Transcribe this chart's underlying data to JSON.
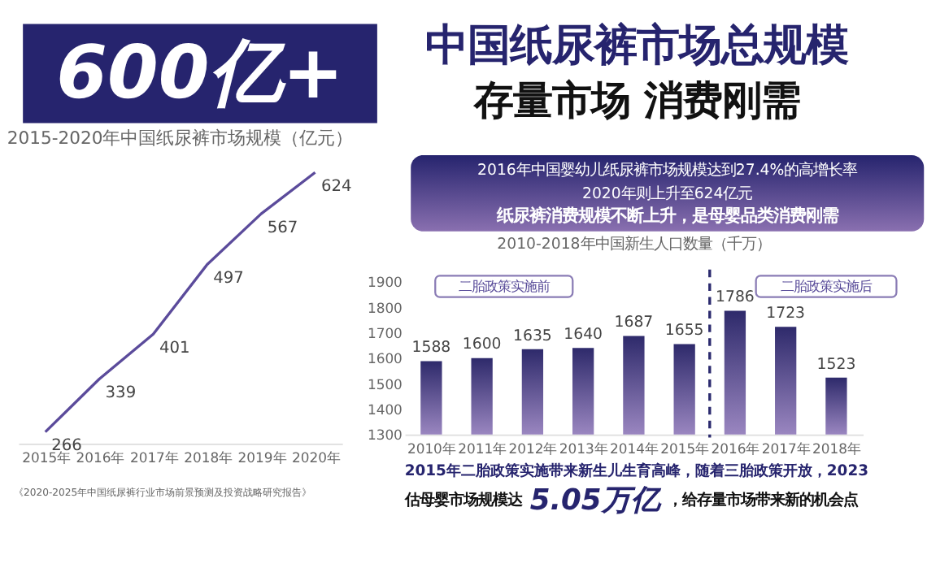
{
  "chart_data": [
    {
      "type": "other",
      "title": "中国纸尿裤市场总规模",
      "subtitle": "存量市场 消费刚需",
      "color": "#26246e",
      "annotations": [
        "600亿+",
        "2016年中国婴幼儿纸尿裤市场规模达到27.4%的高增长率",
        "2020年则上升至624亿元",
        "纸尿裤消费规模不断上升，是母婴品类消费刚需",
        "2015年二胎政策实施带来新生儿生育高峰，随着三胎政策开放，2023",
        "估母婴市场规模达",
        "5.05万亿",
        "，给存量市场带来新的机会点"
      ]
    },
    {
      "type": "line",
      "title": "2015-2020年中国纸尿裤市场规模（亿元）",
      "categories": [
        "2015年",
        "2016年",
        "2017年",
        "2018年",
        "2019年",
        "2020年"
      ],
      "series": [
        {
          "color": "#5b4b9b",
          "values": [
            266,
            339,
            401,
            497,
            567,
            624
          ]
        }
      ],
      "data_labels": true,
      "tick_labels": "x",
      "grid": false,
      "line_style": "solid",
      "annotations": [
        "《2020-2025年中国纸尿裤行业市场前景预测及投资战略研究报告》"
      ]
    },
    {
      "type": "bar",
      "title": "2010-2018年中国新生人口数量（千万）",
      "categories": [
        "2010年",
        "2011年",
        "2012年",
        "2013年",
        "2014年",
        "2015年",
        "2016年",
        "2017年",
        "2018年"
      ],
      "series": [
        {
          "color": "#2e2a6b",
          "values": [
            1588,
            1600,
            1635,
            1640,
            1687,
            1655,
            1786,
            1723,
            1523
          ]
        }
      ],
      "ylim": [
        1300,
        1900
      ],
      "yticks": [
        1300,
        1400,
        1500,
        1600,
        1700,
        1800,
        1900
      ],
      "data_labels": true,
      "grid": false,
      "ref_lines": [
        {
          "axis": "x",
          "value": "2016年",
          "color": "#2b2a6e",
          "line_style": "dashed"
        }
      ],
      "annotations": [
        "二胎政策实施前",
        "二胎政策实施后"
      ]
    }
  ]
}
